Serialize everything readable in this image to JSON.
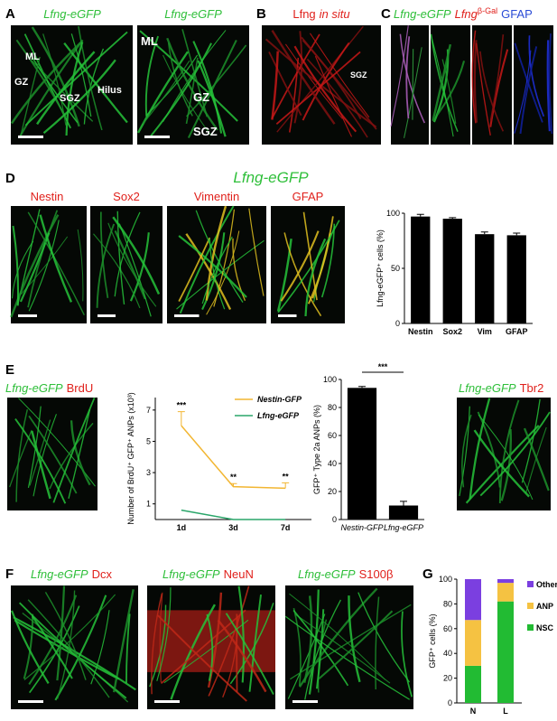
{
  "panel_letters": [
    "A",
    "B",
    "C",
    "D",
    "E",
    "F",
    "G"
  ],
  "panel_a": {
    "titles": [
      "Lfng-eGFP",
      "Lfng-eGFP"
    ],
    "regions": [
      "ML",
      "GZ",
      "SGZ",
      "Hilus",
      "ML",
      "GZ",
      "SGZ"
    ]
  },
  "panel_b": {
    "title": [
      "Lfng",
      "in situ"
    ],
    "region": "SGZ"
  },
  "panel_c": {
    "title": [
      "Lfng-eGFP",
      "Lfng",
      "β-Gal",
      "GFAP"
    ]
  },
  "panel_d": {
    "title": "Lfng-eGFP",
    "stains": [
      "Nestin",
      "Sox2",
      "Vimentin",
      "GFAP"
    ]
  },
  "panel_e": {
    "left_title": [
      "Lfng-eGFP",
      "BrdU"
    ],
    "right_title": [
      "Lfng-eGFP",
      "Tbr2"
    ]
  },
  "panel_f": {
    "titles": [
      [
        "Lfng-eGFP",
        "Dcx"
      ],
      [
        "Lfng-eGFP",
        "NeuN"
      ],
      [
        "Lfng-eGFP",
        "S100β"
      ]
    ]
  },
  "chart_data": [
    {
      "type": "bar",
      "categories": [
        "Nestin",
        "Sox2",
        "Vim",
        "GFAP"
      ],
      "values": [
        97,
        95,
        81,
        80
      ],
      "errors": [
        2,
        1,
        2,
        2
      ],
      "color": "#000000",
      "ylim": [
        0,
        100
      ],
      "yticks": [
        0,
        50,
        100
      ],
      "ylabel": "Lfng-eGFP⁺ cells (%)"
    },
    {
      "type": "line",
      "categories": [
        "1d",
        "3d",
        "7d"
      ],
      "series": [
        {
          "name": "Nestin-GFP",
          "color": "#f2b632",
          "values": [
            6,
            2.1,
            2.0
          ],
          "errors": [
            0.9,
            0.2,
            0.35
          ]
        },
        {
          "name": "Lfng-eGFP",
          "color": "#2aa66a",
          "values": [
            0.6,
            0,
            0
          ]
        }
      ],
      "ylim": [
        0,
        7.8
      ],
      "yticks": [
        1,
        3,
        5,
        7
      ],
      "ylabel": "Number of BrdU⁺ GFP⁺ ANPs (x10³)",
      "annotations": [
        "***",
        "**",
        "**"
      ]
    },
    {
      "type": "bar",
      "categories": [
        "Nestin-GFP",
        "Lfng-eGFP"
      ],
      "values": [
        94,
        10
      ],
      "errors": [
        1,
        3
      ],
      "color": "#000000",
      "ylim": [
        0,
        100
      ],
      "yticks": [
        0,
        20,
        40,
        60,
        80,
        100
      ],
      "ylabel": "GFP⁺ Type 2a ANPs (%)",
      "annotations": [
        "***"
      ]
    },
    {
      "type": "stacked_bar",
      "categories": [
        "N",
        "L"
      ],
      "series": [
        {
          "name": "NSC",
          "color": "#22bb33",
          "values": [
            30,
            82
          ]
        },
        {
          "name": "ANP",
          "color": "#f5c242",
          "values": [
            37,
            15
          ]
        },
        {
          "name": "Other",
          "color": "#7b3fe0",
          "values": [
            33,
            3
          ]
        }
      ],
      "ylim": [
        0,
        100
      ],
      "yticks": [
        0,
        20,
        40,
        60,
        80,
        100
      ],
      "ylabel": "GFP⁺ cells (%)"
    }
  ]
}
